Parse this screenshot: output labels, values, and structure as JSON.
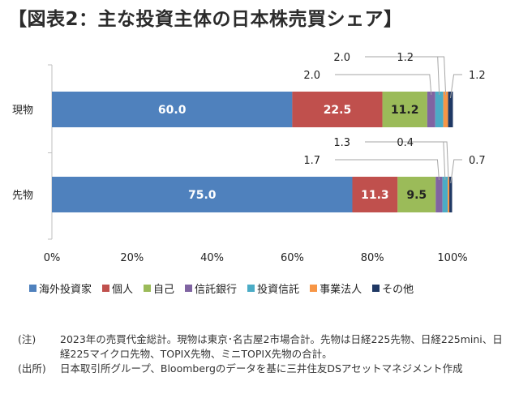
{
  "chart_data": {
    "type": "bar",
    "orientation": "horizontal",
    "stacked": true,
    "title": "【図表2：主な投資主体の日本株売買シェア】",
    "categories": [
      "現物",
      "先物"
    ],
    "xlim": [
      0,
      100
    ],
    "x_ticks": [
      {
        "value": 0,
        "label": "0%"
      },
      {
        "value": 20,
        "label": "20%"
      },
      {
        "value": 40,
        "label": "40%"
      },
      {
        "value": 60,
        "label": "60%"
      },
      {
        "value": 80,
        "label": "80%"
      },
      {
        "value": 100,
        "label": "100%"
      }
    ],
    "series": [
      {
        "name": "海外投資家",
        "color": "#4f81bd",
        "values": [
          60.0,
          75.0
        ],
        "labels": [
          "60.0",
          "75.0"
        ],
        "label_color": "#ffffff"
      },
      {
        "name": "個人",
        "color": "#c0504d",
        "values": [
          22.5,
          11.3
        ],
        "labels": [
          "22.5",
          "11.3"
        ],
        "label_color": "#ffffff"
      },
      {
        "name": "自己",
        "color": "#9bbb59",
        "values": [
          11.2,
          9.5
        ],
        "labels": [
          "11.2",
          "9.5"
        ],
        "label_color": "#222222"
      },
      {
        "name": "信託銀行",
        "color": "#8064a2",
        "values": [
          2.0,
          1.7
        ],
        "labels": [
          "2.0",
          "1.7"
        ]
      },
      {
        "name": "投資信託",
        "color": "#4bacc6",
        "values": [
          2.0,
          1.3
        ],
        "labels": [
          "2.0",
          "1.3"
        ]
      },
      {
        "name": "事業法人",
        "color": "#f79646",
        "values": [
          1.2,
          0.4
        ],
        "labels": [
          "1.2",
          "0.4"
        ]
      },
      {
        "name": "その他",
        "color": "#1f3864",
        "values": [
          1.2,
          0.7
        ],
        "labels": [
          "1.2",
          "0.7"
        ]
      }
    ],
    "legend_position": "bottom"
  },
  "notes": [
    {
      "key": "(注)",
      "text": "2023年の売買代金総計。現物は東京･名古屋2市場合計。先物は日経225先物、日経225mini、日経225マイクロ先物、TOPIX先物、ミニTOPIX先物の合計。"
    },
    {
      "key": "(出所)",
      "text": "日本取引所グループ、Bloombergのデータを基に三井住友DSアセットマネジメント作成"
    }
  ]
}
